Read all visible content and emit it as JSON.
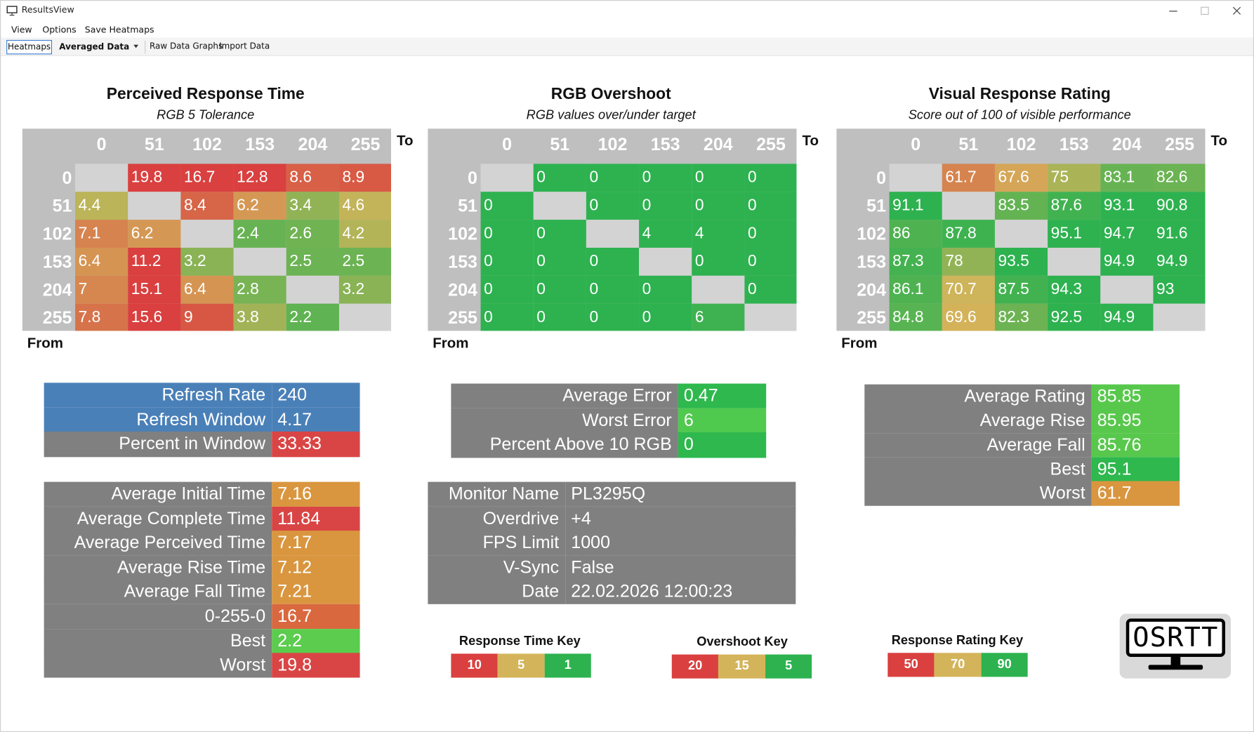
{
  "window": {
    "title": "ResultsView"
  },
  "menu": [
    "View",
    "Options",
    "Save Heatmaps"
  ],
  "toolbar": {
    "tab": "Heatmaps",
    "dropdown": "Averaged Data",
    "buttons": [
      "Raw Data Graphs",
      "Import Data"
    ]
  },
  "heatmaps": [
    {
      "title": "Perceived Response Time",
      "subtitle": "RGB 5 Tolerance",
      "to_label": "To",
      "from_label": "From",
      "to": [
        0,
        51,
        102,
        153,
        204,
        255
      ],
      "from": [
        0,
        51,
        102,
        153,
        204,
        255
      ],
      "rows": [
        [
          null,
          19.8,
          16.7,
          12.8,
          8.6,
          8.9
        ],
        [
          4.4,
          null,
          8.4,
          6.2,
          3.4,
          4.6
        ],
        [
          7.1,
          6.2,
          null,
          2.4,
          2.6,
          4.2
        ],
        [
          6.4,
          11.2,
          3.2,
          null,
          2.5,
          2.5
        ],
        [
          7,
          15.1,
          6.4,
          2.8,
          null,
          3.2
        ],
        [
          7.8,
          15.6,
          9,
          3.8,
          2.2,
          null
        ]
      ]
    },
    {
      "title": "RGB Overshoot",
      "subtitle": "RGB values over/under target",
      "to_label": "To",
      "from_label": "From",
      "to": [
        0,
        51,
        102,
        153,
        204,
        255
      ],
      "from": [
        0,
        51,
        102,
        153,
        204,
        255
      ],
      "rows": [
        [
          null,
          0,
          0,
          0,
          0,
          0
        ],
        [
          0,
          null,
          0,
          0,
          0,
          0
        ],
        [
          0,
          0,
          null,
          4,
          4,
          0
        ],
        [
          0,
          0,
          0,
          null,
          0,
          0
        ],
        [
          0,
          0,
          0,
          0,
          null,
          0
        ],
        [
          0,
          0,
          0,
          0,
          6,
          null
        ]
      ]
    },
    {
      "title": "Visual Response Rating",
      "subtitle": "Score out of 100 of visible performance",
      "to_label": "To",
      "from_label": "From",
      "to": [
        0,
        51,
        102,
        153,
        204,
        255
      ],
      "from": [
        0,
        51,
        102,
        153,
        204,
        255
      ],
      "rows": [
        [
          null,
          61.7,
          67.6,
          75,
          83.1,
          82.6
        ],
        [
          91.1,
          null,
          83.5,
          87.6,
          93.1,
          90.8
        ],
        [
          86,
          87.8,
          null,
          95.1,
          94.7,
          91.6
        ],
        [
          87.3,
          78,
          93.5,
          null,
          94.9,
          94.9
        ],
        [
          86.1,
          70.7,
          87.5,
          94.3,
          null,
          93
        ],
        [
          84.8,
          69.6,
          82.3,
          92.5,
          94.9,
          null
        ]
      ]
    }
  ],
  "stat_tables": [
    {
      "label_color": "#808080",
      "rows": [
        {
          "label": "Refresh Rate",
          "value": 240,
          "color": "#4a80b8",
          "label_color": "#4a80b8"
        },
        {
          "label": "Refresh Window",
          "value": 4.17,
          "color": "#4a80b8",
          "label_color": "#4a80b8"
        },
        {
          "label": "Percent in Window",
          "value": 33.33,
          "color": "#d94545"
        }
      ]
    },
    {
      "label_color": "#808080",
      "rows": [
        {
          "label": "Average Initial Time",
          "value": 7.16,
          "color": "#d9963f"
        },
        {
          "label": "Average Complete Time",
          "value": 11.84,
          "color": "#d94545"
        },
        {
          "label": "Average Perceived Time",
          "value": 7.17,
          "color": "#d9963f"
        },
        {
          "label": "Average Rise Time",
          "value": 7.12,
          "color": "#d9963f"
        },
        {
          "label": "Average Fall Time",
          "value": 7.21,
          "color": "#d9963f"
        },
        {
          "label": "0-255-0",
          "value": 16.7,
          "color": "#d9683f"
        },
        {
          "label": "Best",
          "value": 2.2,
          "color": "#5ccc4e"
        },
        {
          "label": "Worst",
          "value": 19.8,
          "color": "#d94545"
        }
      ]
    },
    {
      "label_color": "#808080",
      "rows": [
        {
          "label": "Average Error",
          "value": 0.47,
          "color": "#2eb84e"
        },
        {
          "label": "Worst Error",
          "value": 6,
          "color": "#50c94f"
        },
        {
          "label": "Percent Above 10 RGB",
          "value": 0,
          "color": "#2eb84e"
        }
      ]
    },
    {
      "label_color": "#808080",
      "rows": [
        {
          "label": "Monitor Name",
          "value": "PL3295Q",
          "color": "#808080"
        },
        {
          "label": "Overdrive",
          "value": "+4",
          "color": "#808080"
        },
        {
          "label": "FPS Limit",
          "value": "1000",
          "color": "#808080"
        },
        {
          "label": "V-Sync",
          "value": "False",
          "color": "#808080"
        },
        {
          "label": "Date",
          "value": "22.02.2026 12:00:23",
          "color": "#808080"
        }
      ]
    },
    {
      "label_color": "#808080",
      "rows": [
        {
          "label": "Average Rating",
          "value": 85.85,
          "color": "#58c84c"
        },
        {
          "label": "Average Rise",
          "value": 85.95,
          "color": "#58c84c"
        },
        {
          "label": "Average Fall",
          "value": 85.76,
          "color": "#58c84c"
        },
        {
          "label": "Best",
          "value": 95.1,
          "color": "#2eb84e"
        },
        {
          "label": "Worst",
          "value": 61.7,
          "color": "#d9963f"
        }
      ]
    }
  ],
  "keys": [
    {
      "title": "Response Time Key",
      "items": [
        {
          "value": 10,
          "color": "#d9403f"
        },
        {
          "value": 5,
          "color": "#d4b45a"
        },
        {
          "value": 1,
          "color": "#2db24f"
        }
      ]
    },
    {
      "title": "Overshoot Key",
      "items": [
        {
          "value": 20,
          "color": "#d9403f"
        },
        {
          "value": 15,
          "color": "#d4b45a"
        },
        {
          "value": 5,
          "color": "#2db24f"
        }
      ]
    },
    {
      "title": "Response Rating Key",
      "items": [
        {
          "value": 50,
          "color": "#d9403f"
        },
        {
          "value": 70,
          "color": "#d4b45a"
        },
        {
          "value": 90,
          "color": "#2db24f"
        }
      ]
    }
  ],
  "logo": "OSRTT"
}
